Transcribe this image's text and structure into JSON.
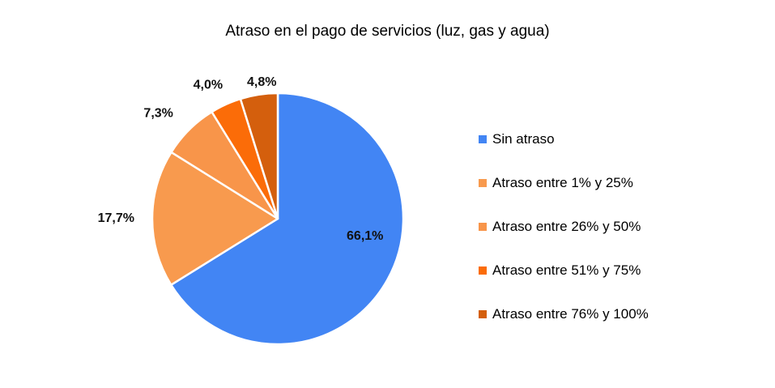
{
  "chart_data": {
    "type": "pie",
    "title": "Atraso en el pago de servicios (luz, gas y agua)",
    "categories": [
      "Sin atraso",
      "Atraso entre 1% y 25%",
      "Atraso entre 26% y 50%",
      "Atraso entre 51% y 75%",
      "Atraso entre 76% y 100%"
    ],
    "values": [
      66.1,
      17.7,
      7.3,
      4.0,
      4.8
    ],
    "data_labels": [
      "66,1%",
      "17,7%",
      "7,3%",
      "4,0%",
      "4,8%"
    ],
    "colors": [
      "#4285F4",
      "#F89A4E",
      "#F8954A",
      "#FB6C08",
      "#D45F0D"
    ],
    "legend_position": "right"
  }
}
